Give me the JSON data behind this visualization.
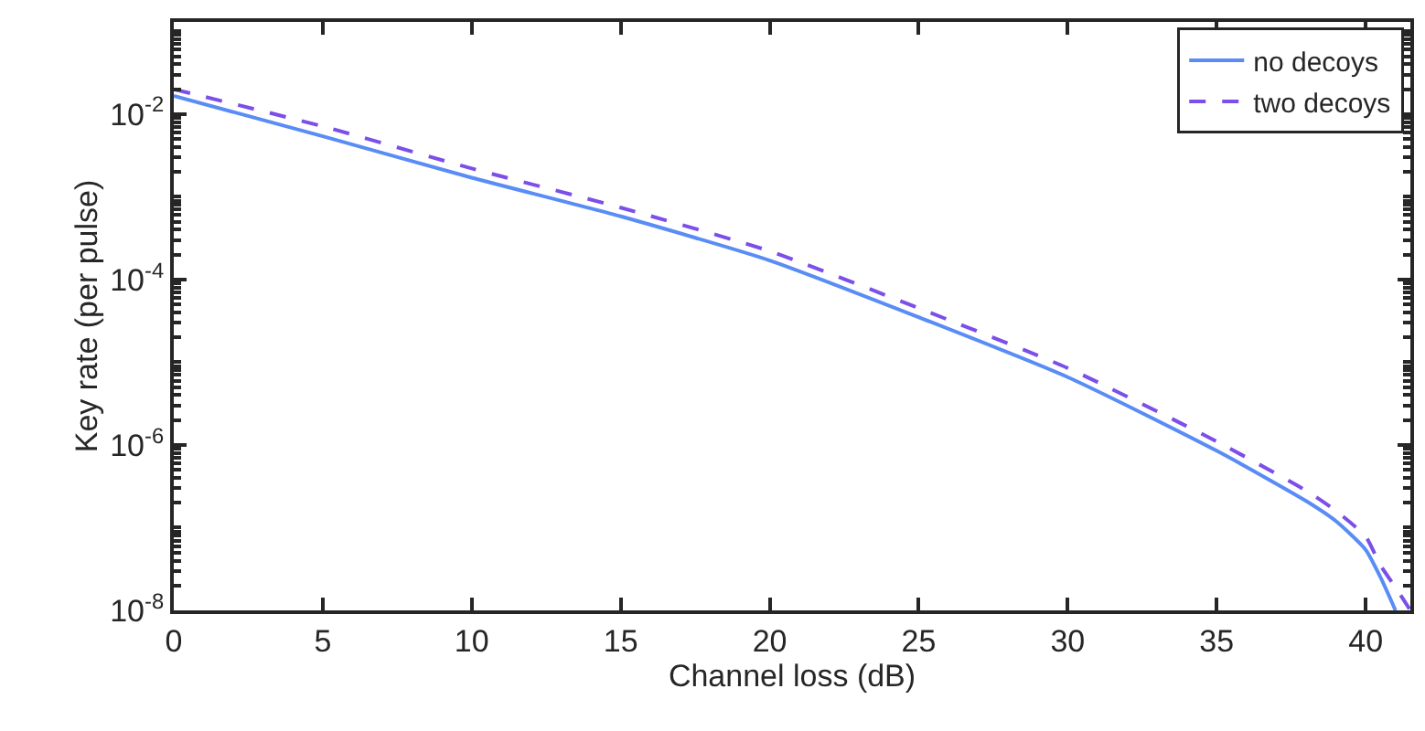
{
  "chart_data": {
    "type": "line",
    "xlabel": "Channel loss (dB)",
    "ylabel": "Key rate (per pulse)",
    "x": [
      0,
      5,
      10,
      15,
      20,
      25,
      30,
      35,
      38,
      39,
      40,
      40.5,
      41,
      41.5
    ],
    "series": [
      {
        "name": "no decoys",
        "color": "#5a8cf5",
        "line_style": "solid",
        "values": [
          0.0166,
          0.0054,
          0.0017,
          0.00058,
          0.00017,
          3.5e-05,
          6.6e-06,
          8.5e-07,
          2.1e-07,
          1.2e-07,
          5.4e-08,
          2.5e-08,
          1e-08,
          null
        ]
      },
      {
        "name": "two decoys",
        "color": "#7b4fe8",
        "line_style": "dashed",
        "values": [
          0.02,
          0.0071,
          0.0022,
          0.00074,
          0.00022,
          4.5e-05,
          8.5e-06,
          1.1e-06,
          2.8e-07,
          1.6e-07,
          7.8e-08,
          3.5e-08,
          1.9e-08,
          1e-08
        ]
      }
    ],
    "log": "y",
    "xlim": [
      0,
      41.5
    ],
    "ylim": [
      1e-08,
      0.13
    ],
    "xticks": [
      0,
      5,
      10,
      15,
      20,
      25,
      30,
      35,
      40
    ],
    "yticks": [
      {
        "value": 1e-08,
        "label": "10$^{-8}$"
      },
      {
        "value": 1e-06,
        "label": "10$^{-6}$"
      },
      {
        "value": 0.0001,
        "label": "10$^{-4}$"
      },
      {
        "value": 0.01,
        "label": "10$^{-2}$"
      }
    ],
    "legend": "top right",
    "marker": "none"
  }
}
